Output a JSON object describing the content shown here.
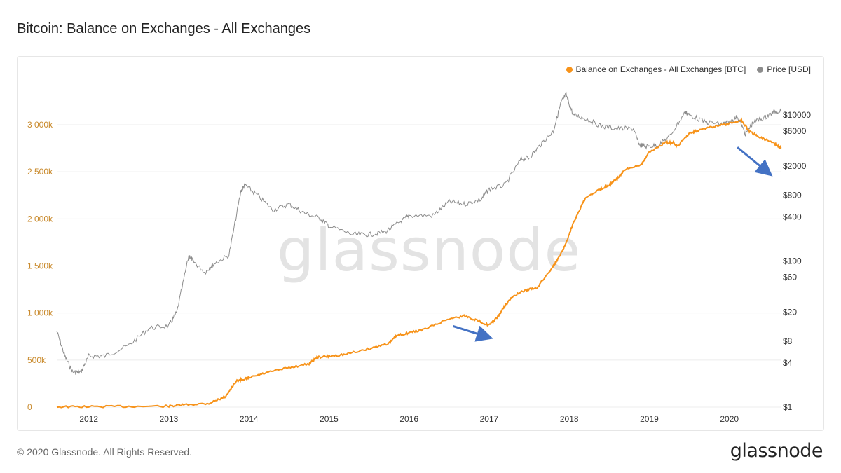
{
  "title": "Bitcoin: Balance on Exchanges - All Exchanges",
  "footer": {
    "copyright": "© 2020 Glassnode. All Rights Reserved.",
    "brand": "glassnode"
  },
  "watermark": "glassnode",
  "colors": {
    "balance": "#f7931a",
    "price": "#8c8c8c",
    "arrow": "#4472c4",
    "left_axis": "#c98a2c",
    "grid": "#ececec"
  },
  "chart_data": {
    "type": "line",
    "legend": {
      "position": "top-right",
      "items": [
        {
          "label": "Balance on Exchanges - All Exchanges [BTC]",
          "color": "#f7931a"
        },
        {
          "label": "Price [USD]",
          "color": "#8c8c8c"
        }
      ]
    },
    "x_range": [
      2011.6,
      2020.65
    ],
    "x_ticks": [
      "2012",
      "2013",
      "2014",
      "2015",
      "2016",
      "2017",
      "2018",
      "2019",
      "2020"
    ],
    "y_left": {
      "range": [
        0,
        3000000
      ],
      "ticks": [
        0,
        500000,
        1000000,
        1500000,
        2000000,
        2500000,
        3000000
      ],
      "tick_labels": [
        "0",
        "500k",
        "1 000k",
        "1 500k",
        "2 000k",
        "2 500k",
        "3 000k"
      ]
    },
    "y_right": {
      "scale": "log",
      "range": [
        1,
        10000
      ],
      "ticks": [
        1,
        4,
        8,
        20,
        60,
        100,
        400,
        800,
        2000,
        6000,
        10000
      ],
      "tick_labels": [
        "$1",
        "$4",
        "$8",
        "$20",
        "$60",
        "$100",
        "$400",
        "$800",
        "$2000",
        "$6000",
        "$10000"
      ]
    },
    "grid": true,
    "series": [
      {
        "name": "Balance on Exchanges - All Exchanges [BTC]",
        "axis": "left",
        "x": [
          2011.6,
          2012.0,
          2012.5,
          2013.0,
          2013.2,
          2013.5,
          2013.7,
          2013.85,
          2013.95,
          2014.0,
          2014.2,
          2014.5,
          2014.75,
          2014.85,
          2015.0,
          2015.2,
          2015.5,
          2015.75,
          2015.85,
          2016.0,
          2016.2,
          2016.5,
          2016.7,
          2016.85,
          2017.0,
          2017.1,
          2017.2,
          2017.3,
          2017.45,
          2017.6,
          2017.75,
          2017.85,
          2017.95,
          2018.05,
          2018.2,
          2018.4,
          2018.5,
          2018.6,
          2018.7,
          2018.9,
          2019.0,
          2019.2,
          2019.3,
          2019.35,
          2019.5,
          2019.6,
          2019.8,
          2020.0,
          2020.15,
          2020.25,
          2020.4,
          2020.55,
          2020.65
        ],
        "y": [
          4000,
          5000,
          8000,
          10000,
          25000,
          40000,
          110000,
          280000,
          300000,
          310000,
          360000,
          420000,
          460000,
          530000,
          540000,
          560000,
          620000,
          680000,
          760000,
          790000,
          830000,
          940000,
          970000,
          920000,
          870000,
          950000,
          1080000,
          1180000,
          1240000,
          1270000,
          1440000,
          1560000,
          1720000,
          1960000,
          2220000,
          2320000,
          2360000,
          2430000,
          2520000,
          2580000,
          2710000,
          2810000,
          2810000,
          2770000,
          2910000,
          2940000,
          2980000,
          3010000,
          3050000,
          2930000,
          2860000,
          2810000,
          2750000
        ]
      },
      {
        "name": "Price [USD]",
        "axis": "right",
        "x": [
          2011.6,
          2011.7,
          2011.8,
          2011.9,
          2012.0,
          2012.2,
          2012.5,
          2012.75,
          2013.0,
          2013.1,
          2013.25,
          2013.3,
          2013.45,
          2013.55,
          2013.75,
          2013.9,
          2013.95,
          2014.1,
          2014.3,
          2014.5,
          2014.7,
          2014.9,
          2015.0,
          2015.3,
          2015.5,
          2015.7,
          2015.9,
          2016.0,
          2016.3,
          2016.5,
          2016.7,
          2016.9,
          2017.0,
          2017.2,
          2017.4,
          2017.5,
          2017.65,
          2017.8,
          2017.9,
          2017.96,
          2018.05,
          2018.2,
          2018.4,
          2018.6,
          2018.8,
          2018.87,
          2018.95,
          2019.1,
          2019.25,
          2019.45,
          2019.5,
          2019.7,
          2019.9,
          2020.0,
          2020.1,
          2020.2,
          2020.3,
          2020.45,
          2020.55,
          2020.65
        ],
        "y": [
          11,
          5,
          3,
          3,
          5,
          5,
          7,
          12,
          13,
          20,
          120,
          100,
          70,
          90,
          120,
          900,
          1100,
          800,
          500,
          600,
          450,
          380,
          300,
          230,
          230,
          250,
          350,
          420,
          420,
          650,
          600,
          700,
          960,
          1100,
          2500,
          2600,
          4000,
          6000,
          15000,
          19000,
          10000,
          9000,
          7000,
          6500,
          6500,
          4000,
          3700,
          3800,
          5000,
          11000,
          10000,
          8000,
          7500,
          8000,
          9500,
          5500,
          8000,
          9300,
          11000,
          11500
        ]
      }
    ],
    "annotations": [
      {
        "type": "arrow",
        "note": "down arrow near 2016.5–2017"
      },
      {
        "type": "arrow",
        "note": "down arrow near 2020.1–2020.5"
      }
    ]
  }
}
